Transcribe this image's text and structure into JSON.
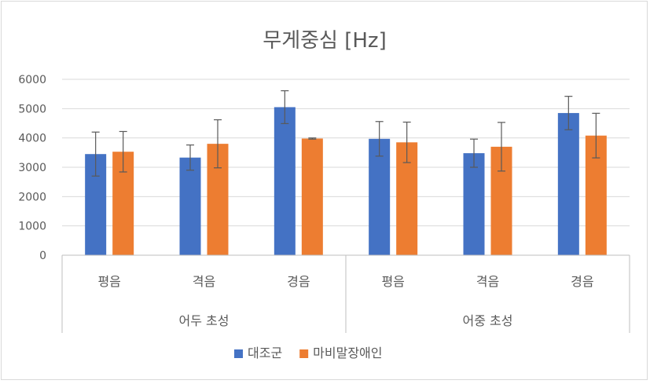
{
  "chart_data": {
    "type": "bar",
    "title": "무게중심 [Hz]",
    "xlabel": "",
    "ylabel": "",
    "ylim": [
      0,
      6000
    ],
    "yticks": [
      "0",
      "1000",
      "2000",
      "3000",
      "4000",
      "5000",
      "6000"
    ],
    "grid": true,
    "legend_position": "bottom",
    "groups": [
      {
        "label": "어두 초성",
        "categories": [
          "평음",
          "격음",
          "경음"
        ]
      },
      {
        "label": "어중 초성",
        "categories": [
          "평음",
          "격음",
          "경음"
        ]
      }
    ],
    "categories": [
      "평음",
      "격음",
      "경음",
      "평음",
      "격음",
      "경음"
    ],
    "series": [
      {
        "name": "대조군",
        "color": "#4472c4",
        "values": [
          3450,
          3330,
          5050,
          3970,
          3480,
          4850
        ],
        "error": [
          750,
          430,
          560,
          590,
          480,
          570
        ]
      },
      {
        "name": "마비말장애인",
        "color": "#ed7d31",
        "values": [
          3530,
          3800,
          3980,
          3850,
          3700,
          4080
        ],
        "error": [
          690,
          820,
          20,
          690,
          830,
          760
        ]
      }
    ]
  }
}
